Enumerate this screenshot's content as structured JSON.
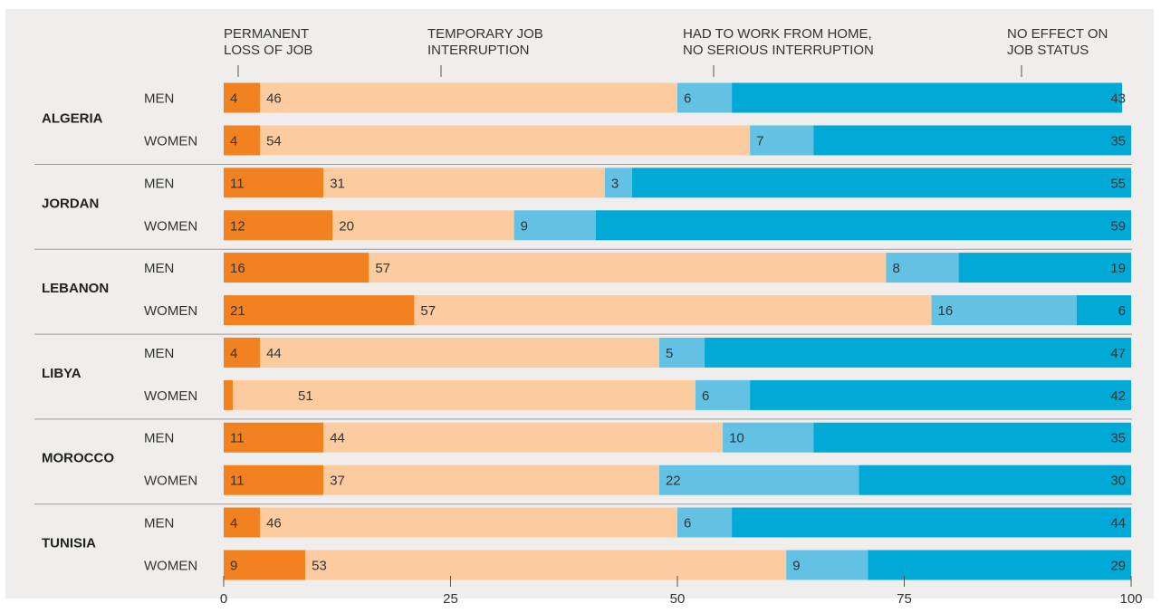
{
  "chart_data": {
    "type": "bar",
    "orientation": "horizontal",
    "stacked": true,
    "xlim": [
      0,
      100
    ],
    "x_ticks": [
      0,
      25,
      50,
      75,
      100
    ],
    "legend_placement": "top",
    "series_names": [
      "PERMANENT LOSS OF JOB",
      "TEMPORARY JOB INTERRUPTION",
      "HAD TO WORK FROM HOME, NO SERIOUS INTERRUPTION",
      "NO EFFECT ON JOB STATUS"
    ],
    "legend_lines": [
      [
        "PERMANENT",
        "LOSS OF JOB"
      ],
      [
        "TEMPORARY JOB",
        "INTERRUPTION"
      ],
      [
        "HAD TO WORK FROM HOME,",
        "NO SERIOUS INTERRUPTION"
      ],
      [
        "NO EFFECT ON",
        "JOB STATUS"
      ]
    ],
    "colors": [
      "#f28220",
      "#fccca0",
      "#63c1e3",
      "#00a9d6"
    ],
    "groups": [
      {
        "country": "ALGERIA",
        "rows": [
          {
            "label": "MEN",
            "values": [
              4,
              46,
              6,
              43
            ]
          },
          {
            "label": "WOMEN",
            "values": [
              4,
              54,
              7,
              35
            ]
          }
        ]
      },
      {
        "country": "JORDAN",
        "rows": [
          {
            "label": "MEN",
            "values": [
              11,
              31,
              3,
              55
            ]
          },
          {
            "label": "WOMEN",
            "values": [
              12,
              20,
              9,
              59
            ]
          }
        ]
      },
      {
        "country": "LEBANON",
        "rows": [
          {
            "label": "MEN",
            "values": [
              16,
              57,
              8,
              19
            ]
          },
          {
            "label": "WOMEN",
            "values": [
              21,
              57,
              16,
              6
            ]
          }
        ]
      },
      {
        "country": "LIBYA",
        "rows": [
          {
            "label": "MEN",
            "values": [
              4,
              44,
              5,
              47
            ]
          },
          {
            "label": "WOMEN",
            "values": [
              1,
              51,
              6,
              42
            ]
          }
        ]
      },
      {
        "country": "MOROCCO",
        "rows": [
          {
            "label": "MEN",
            "values": [
              11,
              44,
              10,
              35
            ]
          },
          {
            "label": "WOMEN",
            "values": [
              11,
              37,
              22,
              30
            ]
          }
        ]
      },
      {
        "country": "TUNISIA",
        "rows": [
          {
            "label": "MEN",
            "values": [
              4,
              46,
              6,
              44
            ]
          },
          {
            "label": "WOMEN",
            "values": [
              9,
              53,
              9,
              29
            ]
          }
        ]
      }
    ]
  }
}
